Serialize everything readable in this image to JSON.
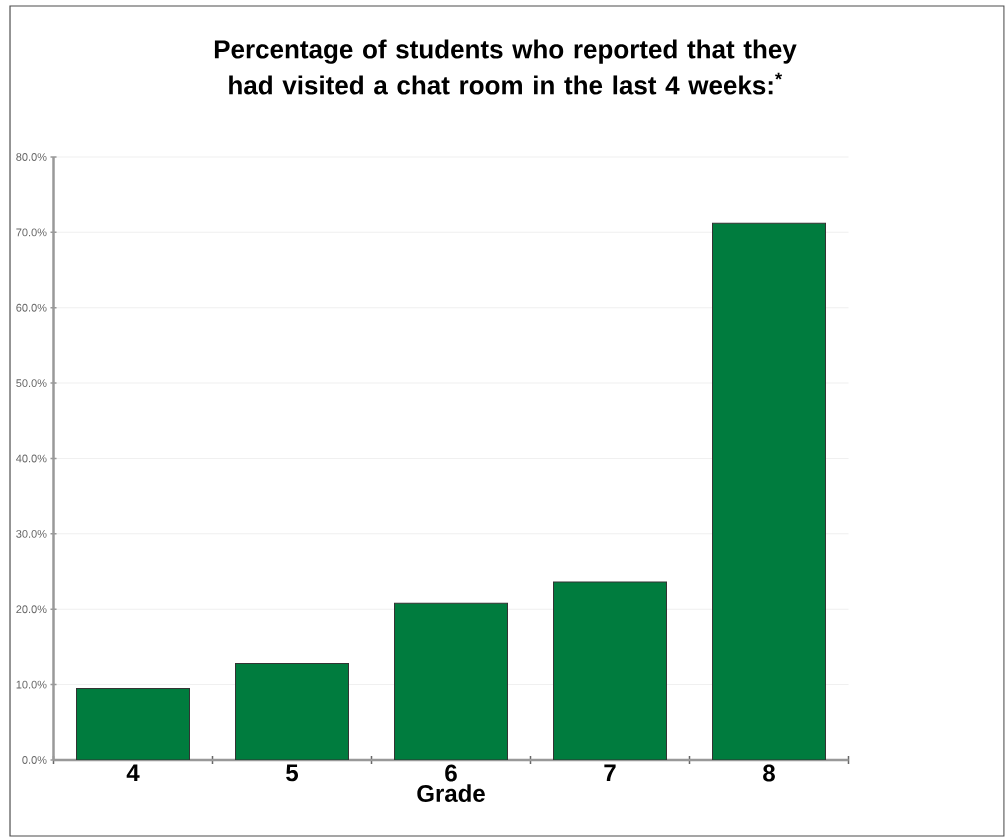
{
  "chart_data": {
    "type": "bar",
    "title": "Percentage of students who reported that they had visited a chat room in the last 4 weeks:$^{*}$",
    "xlabel": "Grade",
    "categories": [
      "4",
      "5",
      "6",
      "7",
      "8"
    ],
    "values": [
      9.5,
      12.8,
      20.8,
      23.6,
      71.2
    ],
    "color": "#007c3e",
    "ylim": [
      0,
      80
    ],
    "yticks": [
      {
        "value": 0,
        "label": "0.0%"
      },
      {
        "value": 10,
        "label": "10.0%"
      },
      {
        "value": 20,
        "label": "20.0%"
      },
      {
        "value": 30,
        "label": "30.0%"
      },
      {
        "value": 40,
        "label": "40.0%"
      },
      {
        "value": 50,
        "label": "50.0%"
      },
      {
        "value": 60,
        "label": "60.0%"
      },
      {
        "value": 70,
        "label": "70.0%"
      },
      {
        "value": 80,
        "label": "80.0%"
      }
    ],
    "grid": "y"
  }
}
